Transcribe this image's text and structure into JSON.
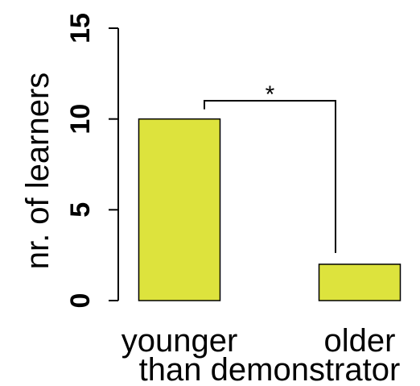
{
  "chart_data": {
    "type": "bar",
    "categories": [
      "younger",
      "older"
    ],
    "values": [
      10,
      2
    ],
    "shared_category_label": "than demonstrator",
    "ylabel": "nr. of learners",
    "ylim": [
      0,
      15
    ],
    "yticks": [
      0,
      5,
      10,
      15
    ],
    "bar_color": "#dde33d",
    "bar_edge_color": "#000000",
    "significance": {
      "label": "*",
      "between": [
        0,
        1
      ]
    },
    "grid": false
  }
}
